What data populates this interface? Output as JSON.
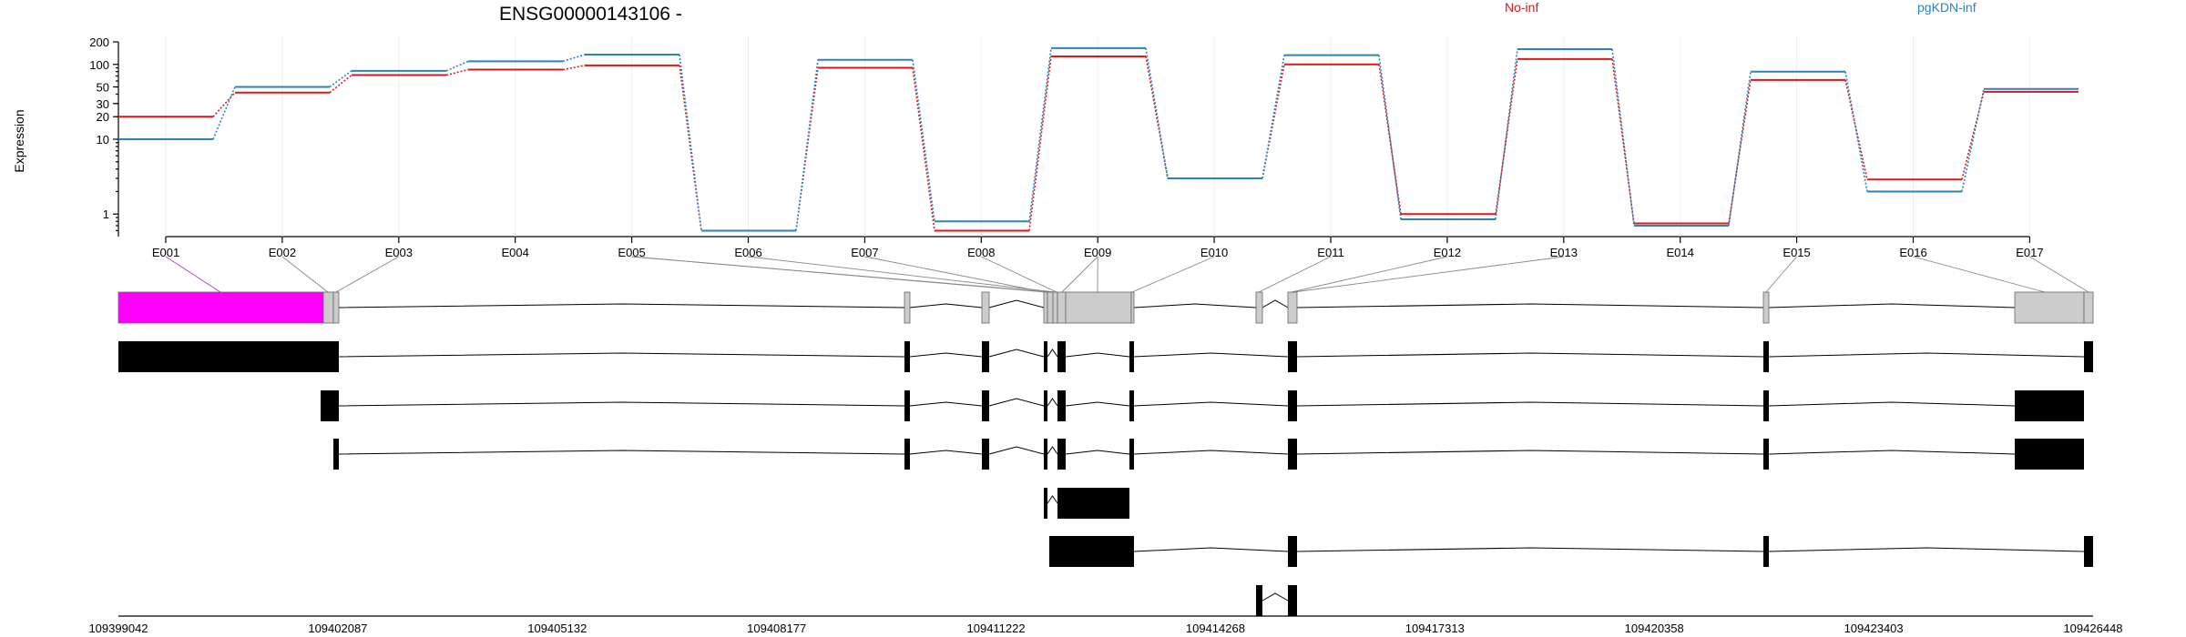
{
  "chart_data": {
    "type": "line",
    "title": "ENSG00000143106 -",
    "ylabel": "Expression",
    "y_scale": "log",
    "ylim": [
      0.5,
      200
    ],
    "yticks": [
      "200",
      "100",
      "50",
      "30",
      "20",
      "10",
      "1"
    ],
    "categories": [
      "E001",
      "E002",
      "E003",
      "E004",
      "E005",
      "E006",
      "E007",
      "E008",
      "E009",
      "E010",
      "E011",
      "E012",
      "E013",
      "E014",
      "E015",
      "E016",
      "E017"
    ],
    "series": [
      {
        "name": "No-inf",
        "color": "#d7191c",
        "values": [
          20,
          42,
          72,
          85,
          97,
          0.6,
          90,
          0.6,
          128,
          3,
          100,
          1.0,
          118,
          0.75,
          62,
          2.9,
          43
        ]
      },
      {
        "name": "pgKDN-inf",
        "color": "#2b83ba",
        "values": [
          10,
          50,
          82,
          110,
          135,
          0.6,
          115,
          0.8,
          165,
          3,
          133,
          0.85,
          160,
          0.7,
          80,
          2.0,
          47
        ]
      }
    ],
    "highlighted_exon": "E001",
    "highlight_color": "#ff00ff",
    "genomic_ticks": [
      "109399042",
      "109402087",
      "109405132",
      "109408177",
      "109411222",
      "109414268",
      "109417313",
      "109420358",
      "109423403",
      "109426448"
    ]
  }
}
